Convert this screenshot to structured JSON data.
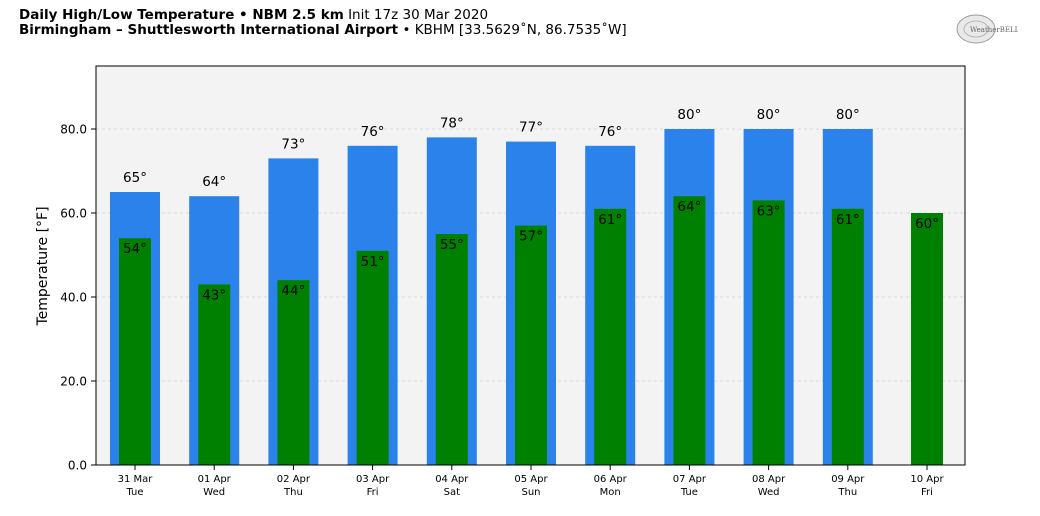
{
  "header": {
    "title_bold": "Daily High/Low Temperature • NBM 2.5 km",
    "title_init": "Init 17z 30 Mar 2020",
    "subtitle_bold": "Birmingham – Shuttlesworth International Airport",
    "subtitle_rest": "• KBHM [33.5629˚N, 86.7535˚W]"
  },
  "logo": {
    "text": "WeatherBELL",
    "icon": "weatherbell-logo"
  },
  "colors": {
    "high": "#2b82ea",
    "low": "#008000",
    "plot_bg": "#f3f3f3",
    "grid": "#d9d9d9"
  },
  "chart_data": {
    "type": "bar",
    "ylabel": "Temperature [°F]",
    "ylim": [
      0,
      95
    ],
    "yticks": [
      0,
      20,
      40,
      60,
      80
    ],
    "ytick_labels": [
      "0.0",
      "20.0",
      "40.0",
      "60.0",
      "80.0"
    ],
    "grid": true,
    "categories": [
      {
        "date": "31 Mar",
        "day": "Tue"
      },
      {
        "date": "01 Apr",
        "day": "Wed"
      },
      {
        "date": "02 Apr",
        "day": "Thu"
      },
      {
        "date": "03 Apr",
        "day": "Fri"
      },
      {
        "date": "04 Apr",
        "day": "Sat"
      },
      {
        "date": "05 Apr",
        "day": "Sun"
      },
      {
        "date": "06 Apr",
        "day": "Mon"
      },
      {
        "date": "07 Apr",
        "day": "Tue"
      },
      {
        "date": "08 Apr",
        "day": "Wed"
      },
      {
        "date": "09 Apr",
        "day": "Thu"
      },
      {
        "date": "10 Apr",
        "day": "Fri"
      }
    ],
    "series": [
      {
        "key": "high",
        "values": [
          65,
          64,
          73,
          76,
          78,
          77,
          76,
          80,
          80,
          80,
          null
        ],
        "labels": [
          "65°",
          "64°",
          "73°",
          "76°",
          "78°",
          "77°",
          "76°",
          "80°",
          "80°",
          "80°",
          ""
        ]
      },
      {
        "key": "low",
        "values": [
          54,
          43,
          44,
          51,
          55,
          57,
          61,
          64,
          63,
          61,
          60
        ],
        "labels": [
          "54°",
          "43°",
          "44°",
          "51°",
          "55°",
          "57°",
          "61°",
          "64°",
          "63°",
          "61°",
          "60°"
        ]
      }
    ]
  }
}
